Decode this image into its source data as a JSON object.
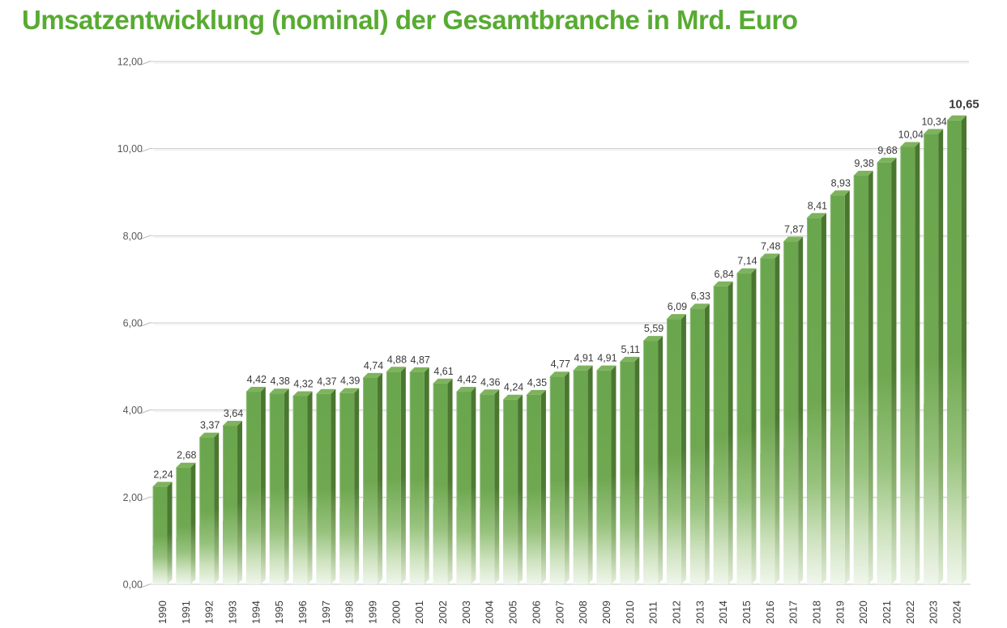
{
  "chart_data": {
    "type": "bar",
    "title": "Umsatzentwicklung (nominal) der Gesamtbranche in Mrd. Euro",
    "xlabel": "",
    "ylabel": "",
    "unit": "Mrd. Euro",
    "ylim": [
      0,
      12
    ],
    "grid": true,
    "legend": null,
    "categories": [
      "1990",
      "1991",
      "1992",
      "1993",
      "1994",
      "1995",
      "1996",
      "1997",
      "1998",
      "1999",
      "2000",
      "2001",
      "2002",
      "2003",
      "2004",
      "2005",
      "2006",
      "2007",
      "2008",
      "2009",
      "2010",
      "2011",
      "2012",
      "2013",
      "2014",
      "2015",
      "2016",
      "2017",
      "2018",
      "2019",
      "2020",
      "2021",
      "2022",
      "2023",
      "2024"
    ],
    "values": [
      2.24,
      2.68,
      3.37,
      3.64,
      4.42,
      4.38,
      4.32,
      4.37,
      4.39,
      4.74,
      4.88,
      4.87,
      4.61,
      4.42,
      4.36,
      4.24,
      4.35,
      4.77,
      4.91,
      4.91,
      5.11,
      5.59,
      6.09,
      6.33,
      6.84,
      7.14,
      7.48,
      7.87,
      8.41,
      8.93,
      9.38,
      9.68,
      10.04,
      10.34,
      10.65
    ],
    "value_labels": [
      "2,24",
      "2,68",
      "3,37",
      "3,64",
      "4,42",
      "4,38",
      "4,32",
      "4,37",
      "4,39",
      "4,74",
      "4,88",
      "4,87",
      "4,61",
      "4,42",
      "4,36",
      "4,24",
      "4,35",
      "4,77",
      "4,91",
      "4,91",
      "5,11",
      "5,59",
      "6,09",
      "6,33",
      "6,84",
      "7,14",
      "7,48",
      "7,87",
      "8,41",
      "8,93",
      "9,38",
      "9,68",
      "10,04",
      "10,34",
      "10,65"
    ],
    "y_ticks": [
      {
        "value": 0,
        "label": "0,00"
      },
      {
        "value": 2,
        "label": "2,00"
      },
      {
        "value": 4,
        "label": "4,00"
      },
      {
        "value": 6,
        "label": "6,00"
      },
      {
        "value": 8,
        "label": "8,00"
      },
      {
        "value": 10,
        "label": "10,00"
      },
      {
        "value": 12,
        "label": "12,00"
      }
    ]
  },
  "colors": {
    "title_green": "#58ab32",
    "bar_front_top": "#69a64d",
    "bar_front_mid": "#6fa850",
    "bar_front_fade1": "#96c27c",
    "bar_front_fade2": "#cfe3c0",
    "bar_front_bottom": "#f0f6ec",
    "bar_side_top": "#4a7630",
    "bar_side_mid": "#4e7a33",
    "bar_side_fade": "#8fb274",
    "bar_side_bottom": "#e3eed9",
    "bar_top_face": "#7db35c",
    "gridline": "#c9c9c9",
    "gridline_echo": "#ececec",
    "axis_tick": "#b5b5b5",
    "y_label_text": "#595959",
    "value_label_text": "#3a3a3a",
    "year_label_text": "#3a3a3a",
    "background": "#ffffff"
  }
}
